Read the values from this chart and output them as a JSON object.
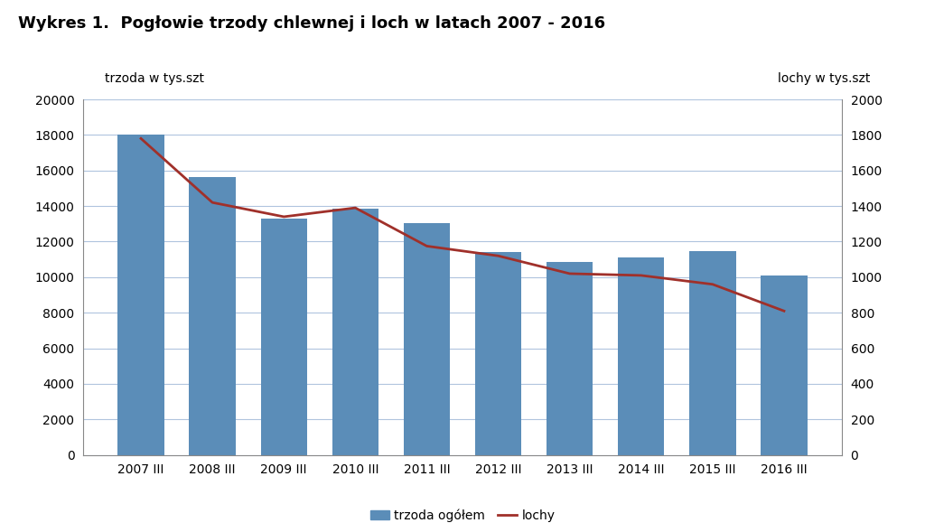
{
  "title": "Wykres 1.  Pogłowie trzody chlewnej i loch w latach 2007 - 2016",
  "title_fontsize": 13,
  "left_ylabel": "trzoda w tys.szt",
  "right_ylabel": "lochy w tys.szt",
  "categories": [
    "2007 III",
    "2008 III",
    "2009 III",
    "2010 III",
    "2011 III",
    "2012 III",
    "2013 III",
    "2014 III",
    "2015 III",
    "2016 III"
  ],
  "bar_values": [
    18000,
    15650,
    13280,
    13870,
    13050,
    11420,
    10870,
    11120,
    11470,
    10100
  ],
  "line_values": [
    1780,
    1420,
    1340,
    1390,
    1175,
    1120,
    1020,
    1010,
    960,
    810
  ],
  "bar_color": "#5B8DB8",
  "line_color": "#A0302A",
  "bar_label": "trzoda ogółem",
  "line_label": "lochy",
  "ylim_left": [
    0,
    20000
  ],
  "ylim_right": [
    0,
    2000
  ],
  "yticks_left": [
    0,
    2000,
    4000,
    6000,
    8000,
    10000,
    12000,
    14000,
    16000,
    18000,
    20000
  ],
  "yticks_right": [
    0,
    200,
    400,
    600,
    800,
    1000,
    1200,
    1400,
    1600,
    1800,
    2000
  ],
  "background_color": "#ffffff",
  "grid_color": "#B0C4DE",
  "figsize": [
    10.24,
    5.79
  ],
  "dpi": 100
}
